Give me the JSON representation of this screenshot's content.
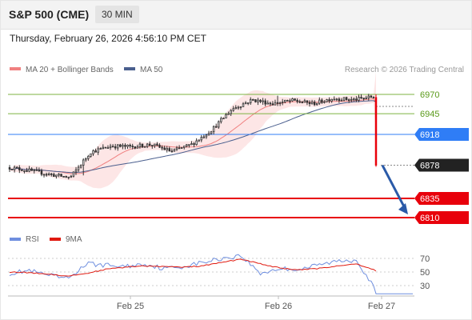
{
  "header": {
    "instrument": "S&P 500 (CME)",
    "timeframe": "30 MIN",
    "datetime": "Thursday, February 26, 2026 4:56:10 PM CET"
  },
  "legend": {
    "ma20_label": "MA 20 + Bollinger Bands",
    "ma50_label": "MA 50",
    "rsi_label": "RSI",
    "rsi_ma_label": "9MA",
    "credit": "Research © 2026 Trading Central"
  },
  "colors": {
    "ma20": "#f08080",
    "bollinger_fill": "#fde3e3",
    "ma50": "#4a5f8e",
    "candle": "#333333",
    "green_levels": "#7cb342",
    "green_text": "#5a9a1a",
    "pivot": "#2f7df6",
    "support": "#e8000b",
    "last_price": "#222222",
    "arrow": "#2a5aa8",
    "rsi": "#6f8fdf",
    "rsi_ma": "#e0190f"
  },
  "chart_data": [
    {
      "type": "candlestick",
      "title": "",
      "x_ticks": [
        "Feb 25",
        "Feb 26",
        "Feb 27"
      ],
      "ylim": [
        6800,
        6985
      ],
      "levels": [
        {
          "label": "6970",
          "value": 6970,
          "kind": "resistance"
        },
        {
          "label": "6945",
          "value": 6945,
          "kind": "resistance"
        },
        {
          "label": "6918",
          "value": 6918,
          "kind": "pivot"
        },
        {
          "label": "6878",
          "value": 6878,
          "kind": "last"
        },
        {
          "label": "6835",
          "value": 6835,
          "kind": "support"
        },
        {
          "label": "6810",
          "value": 6810,
          "kind": "support"
        }
      ],
      "projection": {
        "from_value": 6878,
        "to_value": 6810
      },
      "series": [
        {
          "name": "MA 20 + Bollinger Bands",
          "approx_values": [
            6873,
            6868,
            6862,
            6862,
            6873,
            6890,
            6895,
            6898,
            6898,
            6905,
            6918,
            6938,
            6955,
            6962,
            6963,
            6961,
            6958,
            6960,
            6962,
            6958
          ]
        },
        {
          "name": "MA 50",
          "approx_values": [
            6868,
            6864,
            6860,
            6862,
            6867,
            6877,
            6884,
            6888,
            6892,
            6897,
            6906,
            6918,
            6931,
            6940,
            6946,
            6950,
            6955,
            6958,
            6960,
            6958
          ]
        }
      ],
      "approx_closes": [
        6875,
        6871,
        6866,
        6862,
        6895,
        6903,
        6902,
        6905,
        6896,
        6905,
        6924,
        6951,
        6963,
        6958,
        6962,
        6958,
        6965,
        6963,
        6967,
        6878
      ]
    },
    {
      "type": "line",
      "title": "",
      "y_ticks": [
        70,
        50,
        30
      ],
      "ylim": [
        15,
        80
      ],
      "series": [
        {
          "name": "RSI",
          "approx_values": [
            48,
            52,
            45,
            40,
            62,
            60,
            58,
            62,
            55,
            58,
            64,
            70,
            74,
            48,
            55,
            54,
            60,
            66,
            68,
            22
          ]
        },
        {
          "name": "9MA",
          "approx_values": [
            50,
            49,
            47,
            44,
            48,
            54,
            57,
            59,
            58,
            57,
            59,
            64,
            69,
            62,
            56,
            53,
            55,
            59,
            62,
            52
          ]
        }
      ]
    }
  ]
}
